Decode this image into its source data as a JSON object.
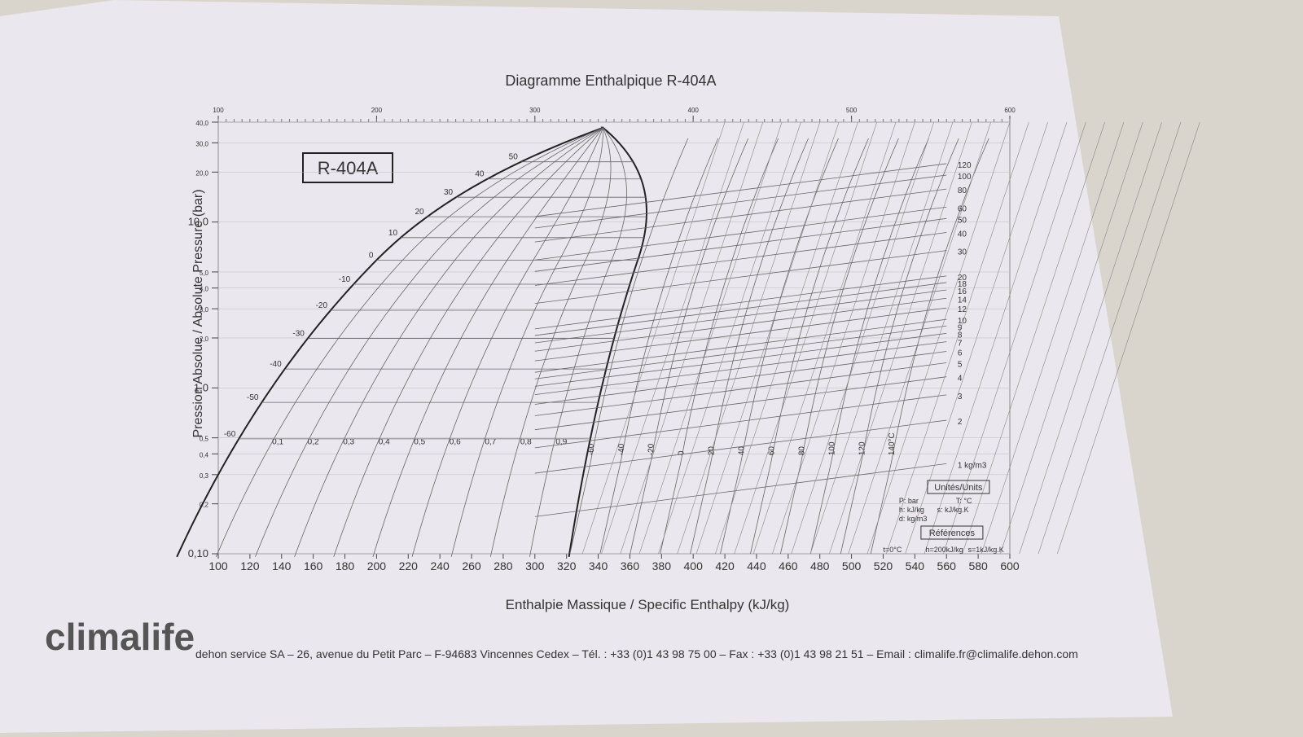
{
  "chart_data": {
    "type": "ph-diagram",
    "title": "Diagramme Enthalpique R-404A",
    "badge": "R-404A",
    "x_label": "Enthalpie Massique / Specific Enthalpy (kJ/kg)",
    "y_label": "Pression Absolue / Absolute Pressure (bar)",
    "xlim": [
      100,
      600
    ],
    "xticks": [
      100,
      120,
      140,
      160,
      180,
      200,
      220,
      240,
      260,
      280,
      300,
      320,
      340,
      360,
      380,
      400,
      420,
      440,
      460,
      480,
      500,
      520,
      540,
      560,
      580,
      600
    ],
    "top_xticks": [
      100,
      200,
      300,
      400,
      500,
      600
    ],
    "log_y": true,
    "ylim": [
      0.1,
      40
    ],
    "yticks": [
      {
        "value": 0.1,
        "label": "0,10"
      },
      {
        "value": 0.2,
        "label": "0,2"
      },
      {
        "value": 0.3,
        "label": "0,3"
      },
      {
        "value": 0.4,
        "label": "0,4"
      },
      {
        "value": 0.5,
        "label": "0,5"
      },
      {
        "value": 1,
        "label": "1,0"
      },
      {
        "value": 2,
        "label": "2,0"
      },
      {
        "value": 3,
        "label": "3,0"
      },
      {
        "value": 4,
        "label": "4,0"
      },
      {
        "value": 5,
        "label": "5,0"
      },
      {
        "value": 10,
        "label": "10,0"
      },
      {
        "value": 20,
        "label": "20,0"
      },
      {
        "value": 30,
        "label": "30,0"
      },
      {
        "value": 40,
        "label": "40,0"
      }
    ],
    "quality_labels": [
      {
        "value": 0.1,
        "label": "0,1"
      },
      {
        "value": 0.2,
        "label": "0,2"
      },
      {
        "value": 0.3,
        "label": "0,3"
      },
      {
        "value": 0.4,
        "label": "0,4"
      },
      {
        "value": 0.5,
        "label": "0,5"
      },
      {
        "value": 0.6,
        "label": "0,6"
      },
      {
        "value": 0.7,
        "label": "0,7"
      },
      {
        "value": 0.8,
        "label": "0,8"
      },
      {
        "value": 0.9,
        "label": "0,9"
      }
    ],
    "saturation_temps": [
      -60,
      -50,
      -40,
      -30,
      -20,
      -10,
      0,
      10,
      20,
      30,
      40,
      50
    ],
    "vapor_isotherms": [
      -60,
      -40,
      -20,
      0,
      20,
      40,
      60,
      80,
      100,
      120,
      {
        "value": 140,
        "label": "140°C"
      }
    ],
    "isochores": [
      120,
      100,
      80,
      60,
      50,
      40,
      30,
      20,
      18,
      16,
      14,
      12,
      10,
      9,
      8,
      7,
      6,
      5,
      4,
      3,
      2,
      {
        "value": 1,
        "label": "1 kg/m3"
      }
    ],
    "units_box": {
      "title": "Unités/Units",
      "items": [
        "P: bar",
        "T: °C",
        "h: kJ/kg",
        "s: kJ/kg.K",
        "d: kg/m3"
      ]
    },
    "references": {
      "title": "Références",
      "items": [
        "t=0°C",
        "h=200kJ/kg",
        "s=1kJ/kg.K"
      ]
    }
  },
  "footer": {
    "brand": "climalife",
    "text": "dehon service SA – 26, avenue du Petit Parc – F-94683 Vincennes Cedex – Tél. : +33 (0)1 43 98 75 00 – Fax : +33 (0)1 43 98 21 51 – Email : climalife.fr@climalife.dehon.com"
  }
}
